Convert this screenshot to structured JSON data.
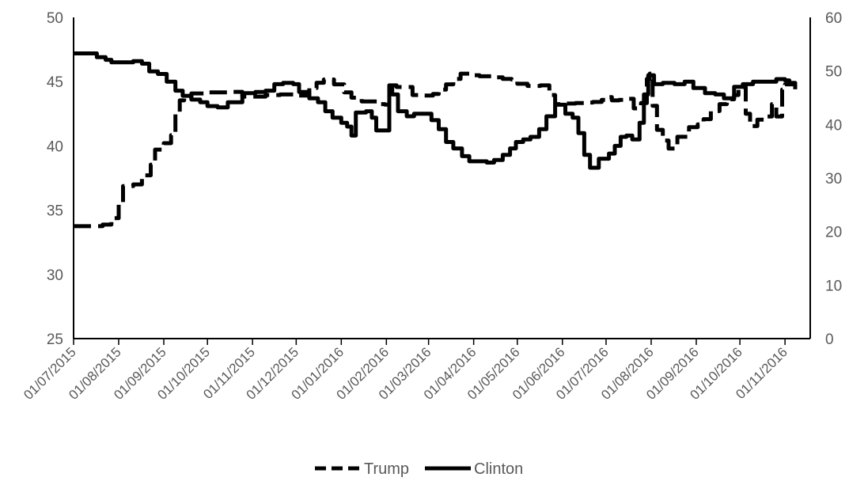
{
  "chart_data": {
    "type": "line",
    "title": "",
    "xlabel": "",
    "ylabel": "",
    "y2label": "",
    "x_range": [
      "2015-07-01",
      "2016-11-08"
    ],
    "ylim": [
      25,
      50
    ],
    "y_ticks": [
      25,
      30,
      35,
      40,
      45,
      50
    ],
    "y2lim": [
      0,
      60
    ],
    "y2_ticks": [
      0,
      10,
      20,
      30,
      40,
      50,
      60
    ],
    "x_ticks": [
      "01/07/2015",
      "01/08/2015",
      "01/09/2015",
      "01/10/2015",
      "01/11/2015",
      "01/12/2015",
      "01/01/2016",
      "01/02/2016",
      "01/03/2016",
      "01/04/2016",
      "01/05/2016",
      "01/06/2016",
      "01/07/2016",
      "01/08/2016",
      "01/09/2016",
      "01/10/2016",
      "01/11/2016"
    ],
    "grid": false,
    "legend_position": "bottom",
    "series": [
      {
        "name": "Trump",
        "axis": "right",
        "style": "dashed",
        "color": "#000000",
        "points": [
          [
            "2015-07-01",
            21
          ],
          [
            "2015-07-14",
            21
          ],
          [
            "2015-07-21",
            21.3
          ],
          [
            "2015-07-27",
            22.5
          ],
          [
            "2015-08-01",
            25.5
          ],
          [
            "2015-08-04",
            28.5
          ],
          [
            "2015-08-11",
            28.8
          ],
          [
            "2015-08-17",
            30.5
          ],
          [
            "2015-08-23",
            32.5
          ],
          [
            "2015-08-26",
            35.3
          ],
          [
            "2015-09-01",
            36.5
          ],
          [
            "2015-09-06",
            38
          ],
          [
            "2015-09-09",
            42
          ],
          [
            "2015-09-12",
            44.5
          ],
          [
            "2015-09-15",
            45.2
          ],
          [
            "2015-09-20",
            45.8
          ],
          [
            "2015-09-30",
            46
          ],
          [
            "2015-10-15",
            46.1
          ],
          [
            "2015-10-25",
            45.2
          ],
          [
            "2015-11-10",
            45.5
          ],
          [
            "2015-11-20",
            45.6
          ],
          [
            "2015-12-03",
            45.4
          ],
          [
            "2015-12-10",
            46.8
          ],
          [
            "2015-12-15",
            47.8
          ],
          [
            "2015-12-20",
            48.4
          ],
          [
            "2015-12-27",
            47.5
          ],
          [
            "2016-01-03",
            46
          ],
          [
            "2016-01-08",
            45
          ],
          [
            "2016-01-15",
            44.3
          ],
          [
            "2016-01-21",
            44.3
          ],
          [
            "2016-01-26",
            43.8
          ],
          [
            "2016-01-31",
            43.7
          ],
          [
            "2016-02-03",
            47.3
          ],
          [
            "2016-02-08",
            47
          ],
          [
            "2016-02-15",
            47
          ],
          [
            "2016-02-19",
            45.5
          ],
          [
            "2016-02-26",
            45.4
          ],
          [
            "2016-03-04",
            45.7
          ],
          [
            "2016-03-08",
            46.5
          ],
          [
            "2016-03-13",
            47.5
          ],
          [
            "2016-03-18",
            48.5
          ],
          [
            "2016-03-23",
            49.5
          ],
          [
            "2016-03-29",
            49.2
          ],
          [
            "2016-04-05",
            49
          ],
          [
            "2016-04-13",
            48.8
          ],
          [
            "2016-04-21",
            48.5
          ],
          [
            "2016-04-27",
            48.4
          ],
          [
            "2016-05-01",
            47.6
          ],
          [
            "2016-05-08",
            47.2
          ],
          [
            "2016-05-17",
            47.3
          ],
          [
            "2016-05-23",
            45.5
          ],
          [
            "2016-05-27",
            43.8
          ],
          [
            "2016-06-01",
            43.9
          ],
          [
            "2016-06-10",
            44
          ],
          [
            "2016-06-17",
            44.1
          ],
          [
            "2016-06-22",
            44.2
          ],
          [
            "2016-06-28",
            44.6
          ],
          [
            "2016-07-01",
            45.1
          ],
          [
            "2016-07-05",
            44.5
          ],
          [
            "2016-07-10",
            44.6
          ],
          [
            "2016-07-15",
            44.8
          ],
          [
            "2016-07-20",
            43
          ],
          [
            "2016-07-25",
            44
          ],
          [
            "2016-07-29",
            48.5
          ],
          [
            "2016-07-31",
            49.5
          ],
          [
            "2016-08-02",
            43.5
          ],
          [
            "2016-08-05",
            39
          ],
          [
            "2016-08-09",
            37
          ],
          [
            "2016-08-13",
            35.5
          ],
          [
            "2016-08-19",
            37.7
          ],
          [
            "2016-08-27",
            39.5
          ],
          [
            "2016-09-02",
            40
          ],
          [
            "2016-09-06",
            41
          ],
          [
            "2016-09-11",
            42.5
          ],
          [
            "2016-09-17",
            43.8
          ],
          [
            "2016-09-22",
            44.7
          ],
          [
            "2016-09-27",
            45.5
          ],
          [
            "2016-09-30",
            47
          ],
          [
            "2016-10-05",
            42
          ],
          [
            "2016-10-08",
            39.7
          ],
          [
            "2016-10-13",
            40.9
          ],
          [
            "2016-10-19",
            41.5
          ],
          [
            "2016-10-23",
            43.8
          ],
          [
            "2016-10-26",
            41.5
          ],
          [
            "2016-10-30",
            46.5
          ],
          [
            "2016-11-01",
            47.5
          ],
          [
            "2016-11-08",
            47
          ]
        ]
      },
      {
        "name": "Clinton",
        "axis": "left",
        "style": "solid",
        "color": "#000000",
        "points": [
          [
            "2015-07-01",
            47.2
          ],
          [
            "2015-07-08",
            47.2
          ],
          [
            "2015-07-17",
            46.9
          ],
          [
            "2015-07-23",
            46.7
          ],
          [
            "2015-07-27",
            46.5
          ],
          [
            "2015-08-01",
            46.5
          ],
          [
            "2015-08-11",
            46.6
          ],
          [
            "2015-08-17",
            46.4
          ],
          [
            "2015-08-22",
            45.8
          ],
          [
            "2015-08-28",
            45.6
          ],
          [
            "2015-09-03",
            45
          ],
          [
            "2015-09-09",
            44.3
          ],
          [
            "2015-09-14",
            43.9
          ],
          [
            "2015-09-20",
            43.6
          ],
          [
            "2015-09-26",
            43.4
          ],
          [
            "2015-10-01",
            43.1
          ],
          [
            "2015-10-08",
            43
          ],
          [
            "2015-10-15",
            43.4
          ],
          [
            "2015-10-25",
            44.1
          ],
          [
            "2015-11-03",
            44.2
          ],
          [
            "2015-11-10",
            44.3
          ],
          [
            "2015-11-16",
            44.8
          ],
          [
            "2015-11-22",
            44.9
          ],
          [
            "2015-11-29",
            44.8
          ],
          [
            "2015-12-03",
            44.2
          ],
          [
            "2015-12-10",
            43.7
          ],
          [
            "2015-12-16",
            43.4
          ],
          [
            "2015-12-21",
            42.7
          ],
          [
            "2015-12-26",
            42.2
          ],
          [
            "2016-01-01",
            41.8
          ],
          [
            "2016-01-05",
            41.5
          ],
          [
            "2016-01-08",
            40.8
          ],
          [
            "2016-01-11",
            42.6
          ],
          [
            "2016-01-18",
            42.7
          ],
          [
            "2016-01-22",
            42.2
          ],
          [
            "2016-01-25",
            41.2
          ],
          [
            "2016-01-31",
            41.2
          ],
          [
            "2016-02-03",
            44.7
          ],
          [
            "2016-02-05",
            44
          ],
          [
            "2016-02-09",
            42.7
          ],
          [
            "2016-02-15",
            42.3
          ],
          [
            "2016-02-20",
            42.5
          ],
          [
            "2016-02-27",
            42.5
          ],
          [
            "2016-03-03",
            42
          ],
          [
            "2016-03-08",
            41.3
          ],
          [
            "2016-03-13",
            40.3
          ],
          [
            "2016-03-18",
            39.8
          ],
          [
            "2016-03-24",
            39.2
          ],
          [
            "2016-03-29",
            38.8
          ],
          [
            "2016-04-05",
            38.8
          ],
          [
            "2016-04-10",
            38.7
          ],
          [
            "2016-04-15",
            38.9
          ],
          [
            "2016-04-21",
            39.3
          ],
          [
            "2016-04-26",
            39.8
          ],
          [
            "2016-04-30",
            40.3
          ],
          [
            "2016-05-05",
            40.5
          ],
          [
            "2016-05-10",
            40.7
          ],
          [
            "2016-05-16",
            41.3
          ],
          [
            "2016-05-21",
            42.3
          ],
          [
            "2016-05-27",
            43.2
          ],
          [
            "2016-06-03",
            42.5
          ],
          [
            "2016-06-08",
            42.2
          ],
          [
            "2016-06-12",
            41
          ],
          [
            "2016-06-16",
            39.3
          ],
          [
            "2016-06-20",
            38.3
          ],
          [
            "2016-06-26",
            39
          ],
          [
            "2016-07-03",
            39.4
          ],
          [
            "2016-07-07",
            40
          ],
          [
            "2016-07-11",
            40.7
          ],
          [
            "2016-07-15",
            40.8
          ],
          [
            "2016-07-19",
            40.5
          ],
          [
            "2016-07-24",
            41.8
          ],
          [
            "2016-07-27",
            44
          ],
          [
            "2016-07-30",
            45.5
          ],
          [
            "2016-08-03",
            44.8
          ],
          [
            "2016-08-09",
            44.9
          ],
          [
            "2016-08-17",
            44.8
          ],
          [
            "2016-08-24",
            45
          ],
          [
            "2016-08-30",
            44.5
          ],
          [
            "2016-09-07",
            44.1
          ],
          [
            "2016-09-14",
            44
          ],
          [
            "2016-09-20",
            43.7
          ],
          [
            "2016-09-27",
            44.6
          ],
          [
            "2016-10-03",
            44.8
          ],
          [
            "2016-10-10",
            45
          ],
          [
            "2016-10-18",
            45
          ],
          [
            "2016-10-26",
            45.2
          ],
          [
            "2016-11-01",
            45.1
          ],
          [
            "2016-11-04",
            44.9
          ],
          [
            "2016-11-08",
            44.4
          ]
        ]
      }
    ]
  }
}
